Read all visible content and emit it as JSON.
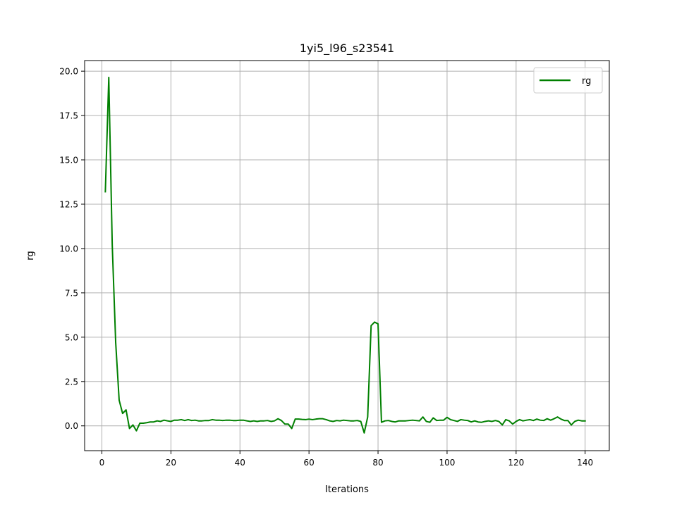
{
  "chart_data": {
    "type": "line",
    "title": "1yi5_l96_s23541",
    "xlabel": "Iterations",
    "ylabel": "rg",
    "xlim": [
      -5,
      147
    ],
    "ylim": [
      -1.4,
      20.6
    ],
    "xticks": [
      0,
      20,
      40,
      60,
      80,
      100,
      120,
      140
    ],
    "yticks": [
      0.0,
      2.5,
      5.0,
      7.5,
      10.0,
      12.5,
      15.0,
      17.5,
      20.0
    ],
    "xtick_labels": [
      "0",
      "20",
      "40",
      "60",
      "80",
      "100",
      "120",
      "140"
    ],
    "ytick_labels": [
      "0.0",
      "2.5",
      "5.0",
      "7.5",
      "10.0",
      "12.5",
      "15.0",
      "17.5",
      "20.0"
    ],
    "grid": true,
    "legend_position": "upper right",
    "series": [
      {
        "name": "rg",
        "color": "#008000",
        "x": [
          1,
          2,
          3,
          4,
          5,
          6,
          7,
          8,
          9,
          10,
          11,
          12,
          13,
          14,
          15,
          16,
          17,
          18,
          19,
          20,
          21,
          22,
          23,
          24,
          25,
          26,
          27,
          28,
          29,
          30,
          31,
          32,
          33,
          34,
          35,
          36,
          37,
          38,
          39,
          40,
          41,
          42,
          43,
          44,
          45,
          46,
          47,
          48,
          49,
          50,
          51,
          52,
          53,
          54,
          55,
          56,
          57,
          58,
          59,
          60,
          61,
          62,
          63,
          64,
          65,
          66,
          67,
          68,
          69,
          70,
          71,
          72,
          73,
          74,
          75,
          76,
          77,
          78,
          79,
          80,
          81,
          82,
          83,
          84,
          85,
          86,
          87,
          88,
          89,
          90,
          91,
          92,
          93,
          94,
          95,
          96,
          97,
          98,
          99,
          100,
          101,
          102,
          103,
          104,
          105,
          106,
          107,
          108,
          109,
          110,
          111,
          112,
          113,
          114,
          115,
          116,
          117,
          118,
          119,
          120,
          121,
          122,
          123,
          124,
          125,
          126,
          127,
          128,
          129,
          130,
          131,
          132,
          133,
          134,
          135,
          136,
          137,
          138,
          139,
          140
        ],
        "y": [
          13.2,
          19.65,
          10.2,
          4.7,
          1.45,
          0.7,
          0.9,
          -0.15,
          0.05,
          -0.28,
          0.15,
          0.15,
          0.18,
          0.22,
          0.22,
          0.28,
          0.25,
          0.32,
          0.28,
          0.25,
          0.32,
          0.32,
          0.35,
          0.3,
          0.35,
          0.3,
          0.32,
          0.28,
          0.28,
          0.3,
          0.3,
          0.35,
          0.32,
          0.32,
          0.3,
          0.32,
          0.32,
          0.3,
          0.3,
          0.32,
          0.32,
          0.28,
          0.25,
          0.28,
          0.25,
          0.28,
          0.28,
          0.3,
          0.25,
          0.28,
          0.4,
          0.3,
          0.1,
          0.1,
          -0.15,
          0.38,
          0.38,
          0.36,
          0.35,
          0.38,
          0.35,
          0.38,
          0.4,
          0.4,
          0.35,
          0.28,
          0.25,
          0.3,
          0.28,
          0.32,
          0.3,
          0.28,
          0.28,
          0.3,
          0.25,
          -0.4,
          0.5,
          5.65,
          5.85,
          5.75,
          0.2,
          0.28,
          0.3,
          0.25,
          0.22,
          0.28,
          0.28,
          0.28,
          0.3,
          0.32,
          0.3,
          0.28,
          0.5,
          0.25,
          0.2,
          0.45,
          0.3,
          0.32,
          0.32,
          0.48,
          0.35,
          0.3,
          0.25,
          0.35,
          0.32,
          0.3,
          0.22,
          0.28,
          0.22,
          0.2,
          0.25,
          0.28,
          0.25,
          0.3,
          0.25,
          0.05,
          0.35,
          0.28,
          0.1,
          0.25,
          0.35,
          0.28,
          0.32,
          0.35,
          0.3,
          0.38,
          0.32,
          0.3,
          0.4,
          0.32,
          0.4,
          0.5,
          0.38,
          0.3,
          0.3,
          0.05,
          0.25,
          0.32,
          0.28,
          0.28
        ]
      }
    ]
  }
}
